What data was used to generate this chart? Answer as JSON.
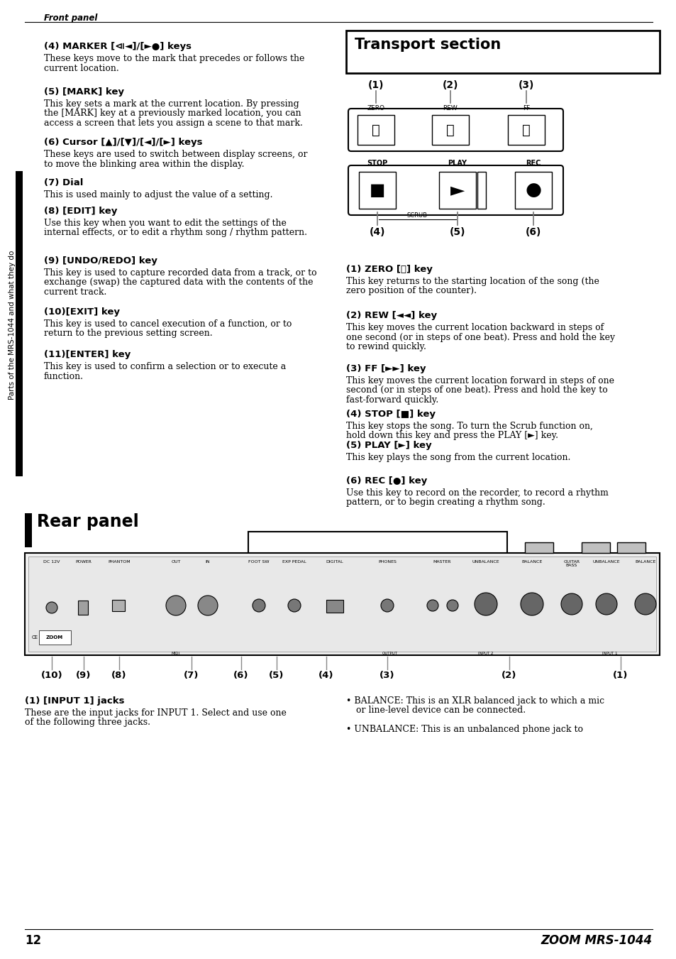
{
  "page_title": "Front panel",
  "sidebar_text": "Parts of the MRS-1044 and what they do",
  "left_sections": [
    {
      "heading": "(4) MARKER [⧏◄]/[►●] keys",
      "body_lines": [
        "These keys move to the mark that precedes or follows the",
        "current location."
      ]
    },
    {
      "heading": "(5) [MARK] key",
      "body_lines": [
        "This key sets a mark at the current location. By pressing",
        "the [MARK] key at a previously marked location, you can",
        "access a screen that lets you assign a scene to that mark."
      ]
    },
    {
      "heading": "(6) Cursor [▲]/[▼]/[◄]/[►] keys",
      "body_lines": [
        "These keys are used to switch between display screens, or",
        "to move the blinking area within the display."
      ]
    },
    {
      "heading": "(7) Dial",
      "body_lines": [
        "This is used mainly to adjust the value of a setting."
      ]
    },
    {
      "heading": "(8) [EDIT] key",
      "body_lines": [
        "Use this key when you want to edit the settings of the",
        "internal effects, or to edit a rhythm song / rhythm pattern."
      ]
    },
    {
      "heading": "(9) [UNDO/REDO] key",
      "body_lines": [
        "This key is used to capture recorded data from a track, or to",
        "exchange (swap) the captured data with the contents of the",
        "current track."
      ]
    },
    {
      "heading": "(10)[EXIT] key",
      "body_lines": [
        "This key is used to cancel execution of a function, or to",
        "return to the previous setting screen."
      ]
    },
    {
      "heading": "(11)[ENTER] key",
      "body_lines": [
        "This key is used to confirm a selection or to execute a",
        "function."
      ]
    }
  ],
  "transport_title": "Transport section",
  "right_sections": [
    {
      "heading": "(1) ZERO [⏮] key",
      "body_lines": [
        "This key returns to the starting location of the song (the",
        "zero position of the counter)."
      ]
    },
    {
      "heading": "(2) REW [◄◄] key",
      "body_lines": [
        "This key moves the current location backward in steps of",
        "one second (or in steps of one beat). Press and hold the key",
        "to rewind quickly."
      ]
    },
    {
      "heading": "(3) FF [►►] key",
      "body_lines": [
        "This key moves the current location forward in steps of one",
        "second (or in steps of one beat). Press and hold the key to",
        "fast-forward quickly."
      ]
    },
    {
      "heading": "(4) STOP [■] key",
      "body_lines": [
        "This key stops the song. To turn the Scrub function on,",
        "hold down this key and press the PLAY [►] key."
      ]
    },
    {
      "heading": "(5) PLAY [►] key",
      "body_lines": [
        "This key plays the song from the current location."
      ]
    },
    {
      "heading": "(6) REC [●] key",
      "body_lines": [
        "Use this key to record on the recorder, to record a rhythm",
        "pattern, or to begin creating a rhythm song."
      ]
    }
  ],
  "rear_panel_title": "Rear panel",
  "bottom_section_heading": "(1) [INPUT 1] jacks",
  "bottom_section_body_lines": [
    "These are the input jacks for INPUT 1. Select and use one",
    "of the following three jacks."
  ],
  "bottom_right_bullets": [
    [
      "BALANCE:",
      "This is an XLR balanced jack to which a mic",
      "or line-level device can be connected."
    ],
    [
      "UNBALANCE:",
      "This is an unbalanced phone jack to"
    ]
  ],
  "device_labels": [
    "DC 12V",
    "POWER",
    "PHANTOM",
    "OUT",
    "IN",
    "FOOT SW",
    "EXP PEDAL",
    "DIGITAL",
    "PHONES",
    "MASTER",
    "UNBALANCE",
    "BALANCE",
    "GUITAR\nBASS",
    "UNBALANCE",
    "BALANCE"
  ],
  "bottom_labels": [
    "(10)",
    "(9)",
    "(8)",
    "(7)",
    "(6)",
    "(5)",
    "(4)",
    "(3)",
    "(2)",
    "(1)"
  ],
  "page_number": "12",
  "footer_right": "ZOOM MRS-1044",
  "bg_color": "#ffffff"
}
